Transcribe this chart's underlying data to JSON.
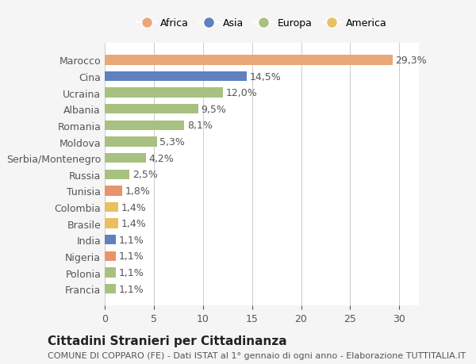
{
  "categories": [
    "Francia",
    "Polonia",
    "Nigeria",
    "India",
    "Brasile",
    "Colombia",
    "Tunisia",
    "Russia",
    "Serbia/Montenegro",
    "Moldova",
    "Romania",
    "Albania",
    "Ucraina",
    "Cina",
    "Marocco"
  ],
  "values": [
    1.1,
    1.1,
    1.1,
    1.1,
    1.4,
    1.4,
    1.8,
    2.5,
    4.2,
    5.3,
    8.1,
    9.5,
    12.0,
    14.5,
    29.3
  ],
  "labels": [
    "1,1%",
    "1,1%",
    "1,1%",
    "1,1%",
    "1,4%",
    "1,4%",
    "1,8%",
    "2,5%",
    "4,2%",
    "5,3%",
    "8,1%",
    "9,5%",
    "12,0%",
    "14,5%",
    "29,3%"
  ],
  "colors": [
    "#a8c080",
    "#a8c080",
    "#e8936a",
    "#6080c0",
    "#e8c060",
    "#e8c060",
    "#e8936a",
    "#a8c080",
    "#a8c080",
    "#a8c080",
    "#a8c080",
    "#a8c080",
    "#a8c080",
    "#6080c0",
    "#e8a878"
  ],
  "legend_labels": [
    "Africa",
    "Asia",
    "Europa",
    "America"
  ],
  "legend_colors": [
    "#e8a878",
    "#6080c0",
    "#a8c080",
    "#e8c060"
  ],
  "title": "Cittadini Stranieri per Cittadinanza",
  "subtitle": "COMUNE DI COPPARO (FE) - Dati ISTAT al 1° gennaio di ogni anno - Elaborazione TUTTITALIA.IT",
  "xlim": [
    0,
    32
  ],
  "xticks": [
    0,
    5,
    10,
    15,
    20,
    25,
    30
  ],
  "background_color": "#f5f5f5",
  "bar_background": "#ffffff",
  "grid_color": "#cccccc",
  "label_fontsize": 9,
  "tick_fontsize": 9,
  "title_fontsize": 11,
  "subtitle_fontsize": 8
}
